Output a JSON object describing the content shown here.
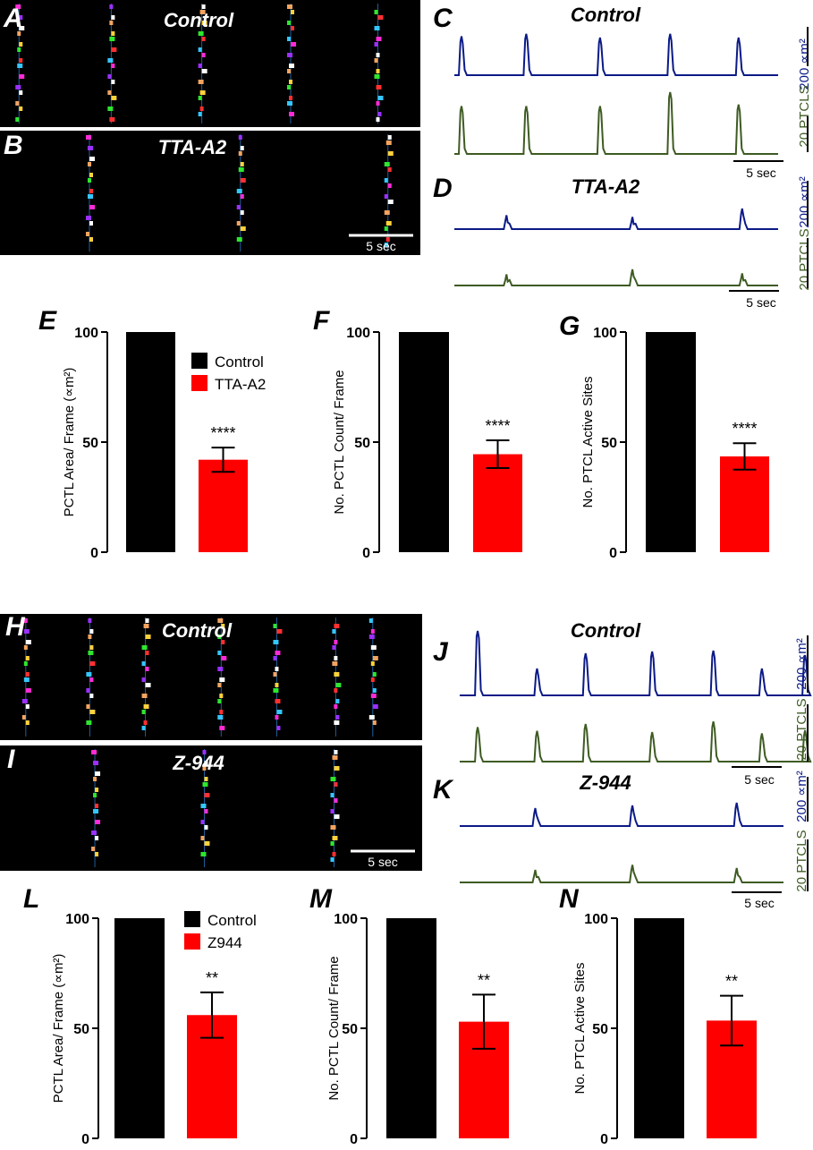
{
  "panel_letters": {
    "A": "A",
    "B": "B",
    "C": "C",
    "D": "D",
    "E": "E",
    "F": "F",
    "G": "G",
    "H": "H",
    "I": "I",
    "J": "J",
    "K": "K",
    "L": "L",
    "M": "M",
    "N": "N"
  },
  "colors": {
    "raster_bg": "#000000",
    "trace_area": "#0b1a86",
    "trace_count": "#3e5b23",
    "bar_control": "#000000",
    "bar_treated": "#ff0000",
    "raster_cells": [
      "#ff2bd6",
      "#2ee62e",
      "#ffffff",
      "#35c6ff",
      "#ffd23b",
      "#9b30ff",
      "#ff3030",
      "#f4a460"
    ]
  },
  "rasters": {
    "A": {
      "title": "Control",
      "scale": "",
      "events_sec": [
        0.6,
        6.1,
        11.5,
        16.8,
        22.0
      ]
    },
    "B": {
      "title": "TTA-A2",
      "scale": "5 sec",
      "events_sec": [
        4.8,
        13.8,
        22.6
      ]
    },
    "H": {
      "title": "Control",
      "scale": "",
      "events_sec": [
        1.0,
        4.8,
        8.1,
        12.6,
        15.9,
        19.4,
        21.6
      ]
    },
    "I": {
      "title": "Z-944",
      "scale": "5 sec",
      "events_sec": [
        5.1,
        11.6,
        19.3
      ]
    }
  },
  "traces": {
    "C": {
      "title": "Control",
      "area": {
        "label": "200 ∝m²",
        "events": [
          {
            "t": 0.4,
            "amp": 0.62
          },
          {
            "t": 4.0,
            "amp": 0.66
          },
          {
            "t": 8.1,
            "amp": 0.6
          },
          {
            "t": 12.0,
            "amp": 0.66
          },
          {
            "t": 15.8,
            "amp": 0.6
          }
        ]
      },
      "count": {
        "label": "20 PTCLS",
        "events": [
          {
            "t": 0.4,
            "amp": 0.58
          },
          {
            "t": 4.0,
            "amp": 0.58
          },
          {
            "t": 8.1,
            "amp": 0.58
          },
          {
            "t": 12.0,
            "amp": 0.75
          },
          {
            "t": 15.8,
            "amp": 0.6
          }
        ]
      },
      "scale": "5 sec"
    },
    "D": {
      "title": "TTA-A2",
      "area": {
        "label": "200 ∝m²",
        "events": [
          {
            "t": 2.9,
            "amp": 0.25
          },
          {
            "t": 9.9,
            "amp": 0.22
          },
          {
            "t": 16.0,
            "amp": 0.37
          }
        ]
      },
      "count": {
        "label": "20 PTCLS",
        "events": [
          {
            "t": 2.9,
            "amp": 0.2
          },
          {
            "t": 9.9,
            "amp": 0.29
          },
          {
            "t": 16.0,
            "amp": 0.22
          }
        ]
      },
      "scale": "5 sec"
    },
    "J": {
      "title": "Control",
      "area": {
        "label": "200 ∝m²",
        "events": [
          {
            "t": 1.0,
            "amp": 0.72
          },
          {
            "t": 4.3,
            "amp": 0.3
          },
          {
            "t": 7.0,
            "amp": 0.47
          },
          {
            "t": 10.7,
            "amp": 0.49
          },
          {
            "t": 14.1,
            "amp": 0.5
          },
          {
            "t": 16.8,
            "amp": 0.3
          },
          {
            "t": 19.2,
            "amp": 0.45
          }
        ]
      },
      "count": {
        "label": "20 PTCLS",
        "events": [
          {
            "t": 1.0,
            "amp": 0.55
          },
          {
            "t": 4.3,
            "amp": 0.49
          },
          {
            "t": 7.0,
            "amp": 0.6
          },
          {
            "t": 10.7,
            "amp": 0.47
          },
          {
            "t": 14.1,
            "amp": 0.64
          },
          {
            "t": 16.8,
            "amp": 0.45
          },
          {
            "t": 19.2,
            "amp": 0.5
          }
        ]
      },
      "scale": "5 sec"
    },
    "K": {
      "title": "Z-944",
      "area": {
        "label": "200 ∝m²",
        "events": [
          {
            "t": 4.2,
            "amp": 0.2
          },
          {
            "t": 9.6,
            "amp": 0.23
          },
          {
            "t": 15.4,
            "amp": 0.26
          }
        ]
      },
      "count": {
        "label": "20 PTCLS",
        "events": [
          {
            "t": 4.2,
            "amp": 0.2
          },
          {
            "t": 9.6,
            "amp": 0.28
          },
          {
            "t": 15.4,
            "amp": 0.23
          }
        ]
      },
      "scale": "5 sec"
    }
  },
  "chart_data": [
    {
      "panel": "E",
      "type": "bar",
      "categories": [
        "Control",
        "TTA-A2"
      ],
      "values": [
        100,
        42
      ],
      "error": [
        0,
        5.5
      ],
      "significance": [
        "",
        "****"
      ],
      "ylabel": "PCTL Area/ Frame (∝m²)",
      "ylim": [
        0,
        100
      ],
      "yticks": [
        0,
        50,
        100
      ],
      "legend": [
        "Control",
        "TTA-A2"
      ]
    },
    {
      "panel": "F",
      "type": "bar",
      "categories": [
        "Control",
        "TTA-A2"
      ],
      "values": [
        100,
        44.5
      ],
      "error": [
        0,
        6.3
      ],
      "significance": [
        "",
        "****"
      ],
      "ylabel": "No. PCTL Count/ Frame",
      "ylim": [
        0,
        100
      ],
      "yticks": [
        0,
        50,
        100
      ]
    },
    {
      "panel": "G",
      "type": "bar",
      "categories": [
        "Control",
        "TTA-A2"
      ],
      "values": [
        100,
        43.5
      ],
      "error": [
        0,
        6.0
      ],
      "significance": [
        "",
        "****"
      ],
      "ylabel": "No. PTCL Active Sites",
      "ylim": [
        0,
        100
      ],
      "yticks": [
        0,
        50,
        100
      ]
    },
    {
      "panel": "L",
      "type": "bar",
      "categories": [
        "Control",
        "Z944"
      ],
      "values": [
        100,
        56
      ],
      "error": [
        0,
        10.3
      ],
      "significance": [
        "",
        "**"
      ],
      "ylabel": "PCTL Area/ Frame (∝m²)",
      "ylim": [
        0,
        100
      ],
      "yticks": [
        0,
        50,
        100
      ],
      "legend": [
        "Control",
        "Z944"
      ]
    },
    {
      "panel": "M",
      "type": "bar",
      "categories": [
        "Control",
        "Z944"
      ],
      "values": [
        100,
        53
      ],
      "error": [
        0,
        12.3
      ],
      "significance": [
        "",
        "**"
      ],
      "ylabel": "No. PCTL Count/ Frame",
      "ylim": [
        0,
        100
      ],
      "yticks": [
        0,
        50,
        100
      ]
    },
    {
      "panel": "N",
      "type": "bar",
      "categories": [
        "Control",
        "Z944"
      ],
      "values": [
        100,
        53.5
      ],
      "error": [
        0,
        11.3
      ],
      "significance": [
        "",
        "**"
      ],
      "ylabel": "No. PTCL Active Sites",
      "ylim": [
        0,
        100
      ],
      "yticks": [
        0,
        50,
        100
      ]
    }
  ]
}
